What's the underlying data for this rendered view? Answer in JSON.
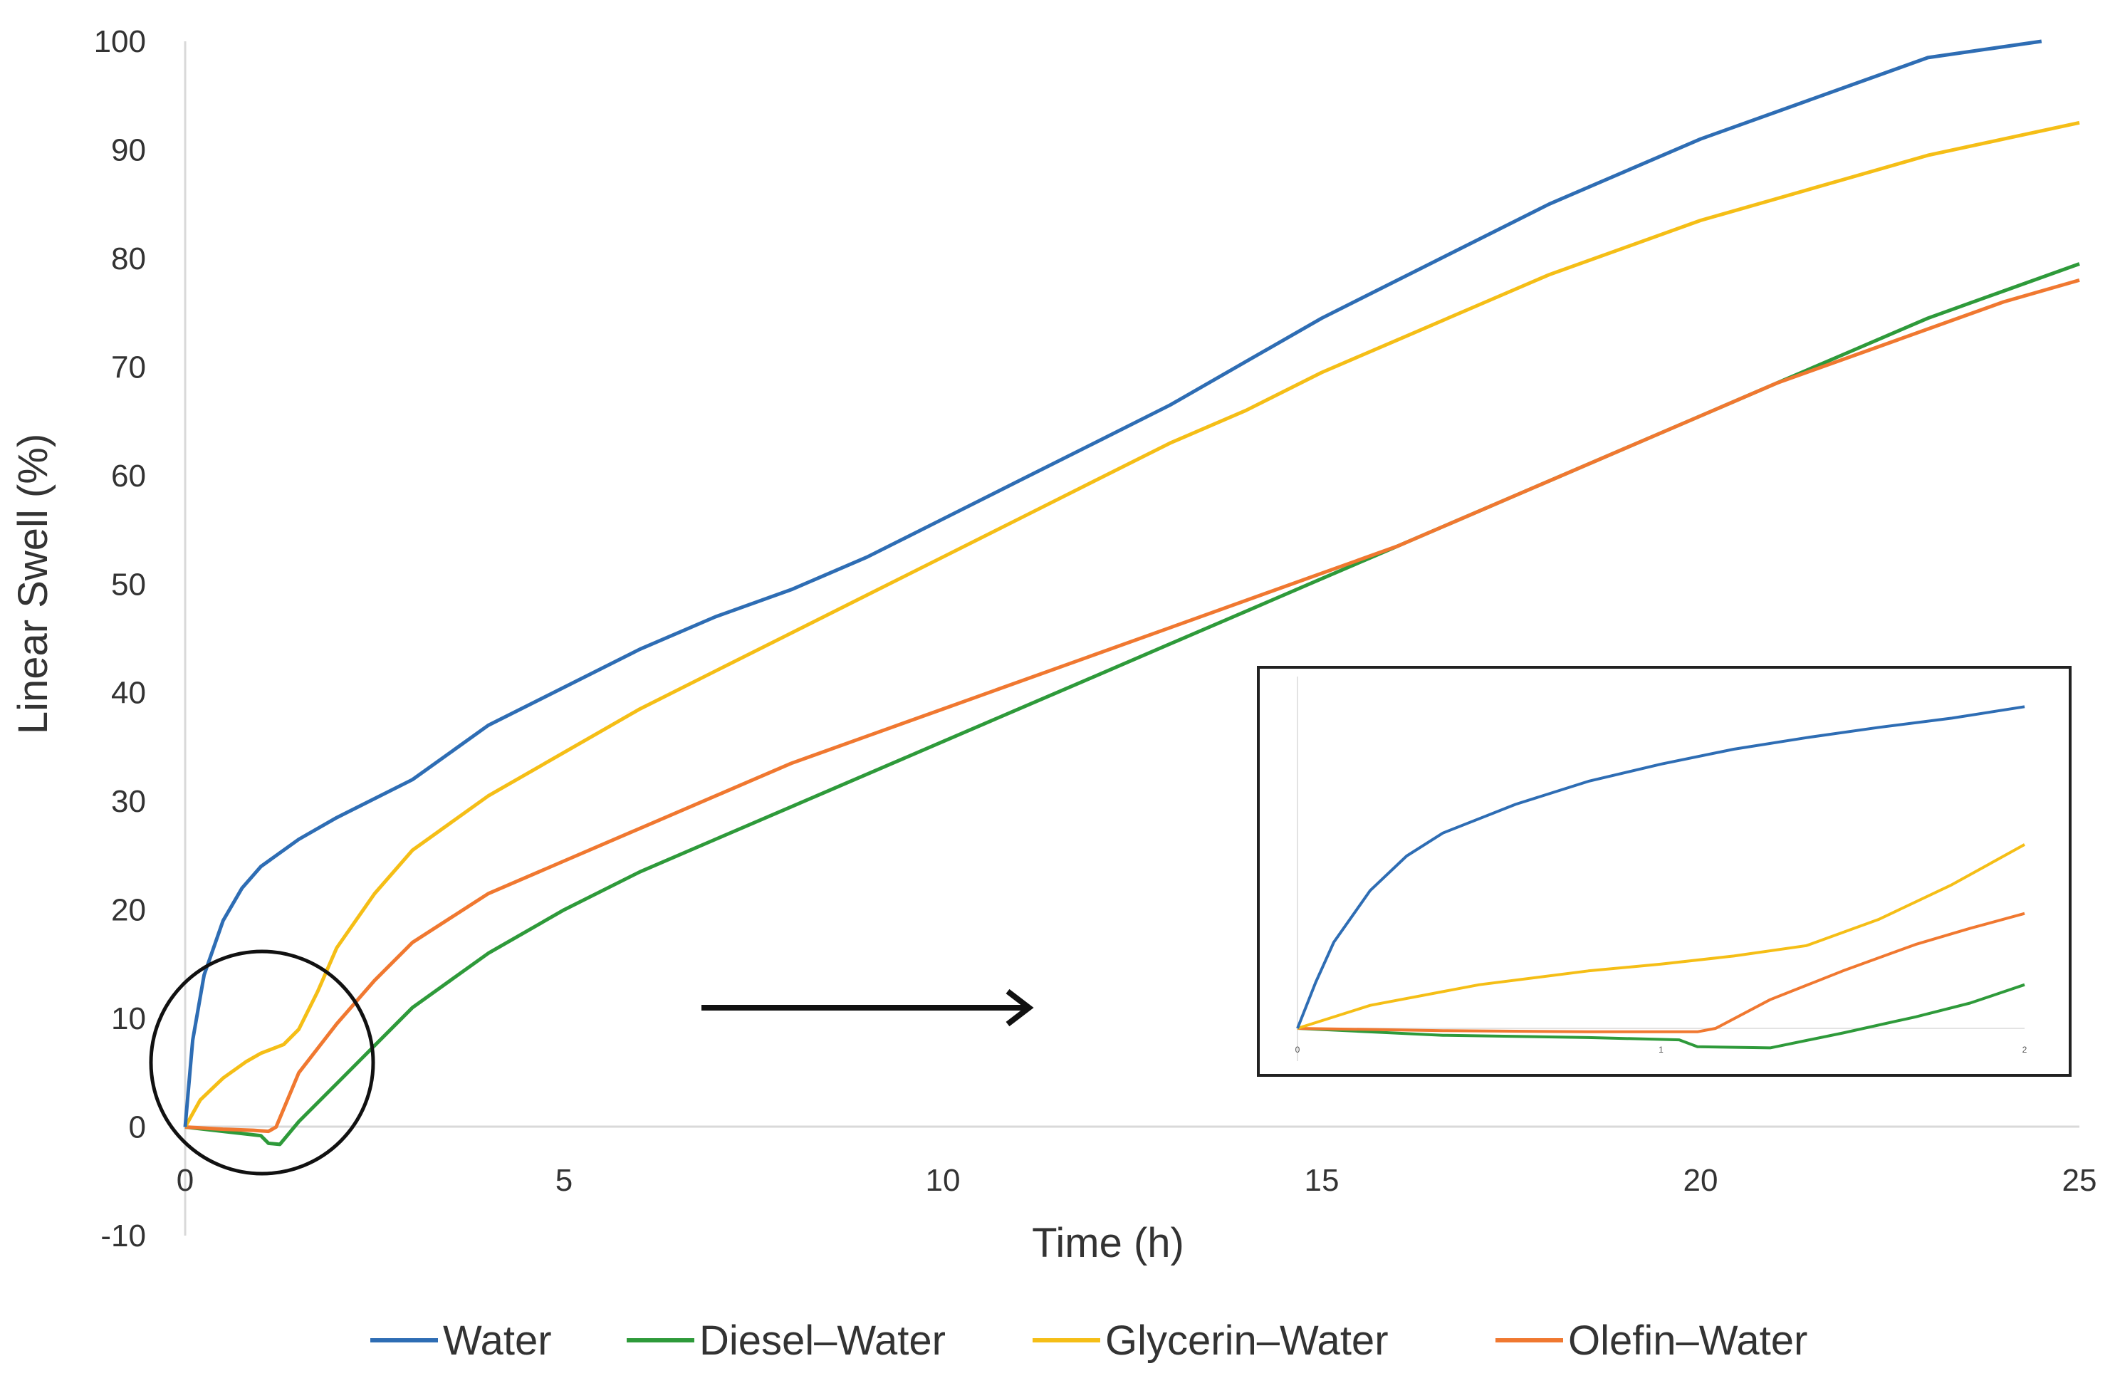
{
  "chart_data": {
    "type": "line",
    "title": "",
    "xlabel": "Time (h)",
    "ylabel": "Linear Swell (%)",
    "xlim": [
      0,
      25
    ],
    "ylim": [
      -10,
      100
    ],
    "x_ticks": [
      "0",
      "5",
      "10",
      "15",
      "20",
      "25"
    ],
    "y_ticks": [
      "-10",
      "0",
      "10",
      "20",
      "30",
      "40",
      "50",
      "60",
      "70",
      "80",
      "90",
      "100"
    ],
    "grid": false,
    "legend_position": "bottom",
    "series": [
      {
        "name": "Water",
        "color": "#2E6DB4",
        "points": [
          [
            0,
            0
          ],
          [
            0.1,
            8
          ],
          [
            0.25,
            14
          ],
          [
            0.5,
            19
          ],
          [
            0.75,
            22
          ],
          [
            1,
            24
          ],
          [
            1.5,
            26.5
          ],
          [
            2,
            28.5
          ],
          [
            3,
            32
          ],
          [
            4,
            37
          ],
          [
            5,
            40.5
          ],
          [
            6,
            44
          ],
          [
            7,
            47
          ],
          [
            8,
            49.5
          ],
          [
            9,
            52.5
          ],
          [
            10,
            56
          ],
          [
            11,
            59.5
          ],
          [
            12,
            63
          ],
          [
            13,
            66.5
          ],
          [
            14,
            70.5
          ],
          [
            15,
            74.5
          ],
          [
            16,
            78
          ],
          [
            17,
            81.5
          ],
          [
            18,
            85
          ],
          [
            19,
            88
          ],
          [
            20,
            91
          ],
          [
            21,
            93.5
          ],
          [
            22,
            96
          ],
          [
            23,
            98.5
          ],
          [
            24,
            99.5
          ],
          [
            24.5,
            100
          ]
        ]
      },
      {
        "name": "Diesel–Water",
        "color": "#2E9A3A",
        "points": [
          [
            0,
            0
          ],
          [
            0.5,
            -0.4
          ],
          [
            1,
            -0.8
          ],
          [
            1.1,
            -1.5
          ],
          [
            1.25,
            -1.6
          ],
          [
            1.5,
            0.5
          ],
          [
            2,
            4
          ],
          [
            2.5,
            7.5
          ],
          [
            3,
            11
          ],
          [
            4,
            16
          ],
          [
            5,
            20
          ],
          [
            6,
            23.5
          ],
          [
            7,
            26.5
          ],
          [
            8,
            29.5
          ],
          [
            9,
            32.5
          ],
          [
            10,
            35.5
          ],
          [
            11,
            38.5
          ],
          [
            12,
            41.5
          ],
          [
            13,
            44.5
          ],
          [
            14,
            47.5
          ],
          [
            15,
            50.5
          ],
          [
            16,
            53.5
          ],
          [
            17,
            56.5
          ],
          [
            18,
            59.5
          ],
          [
            19,
            62.5
          ],
          [
            20,
            65.5
          ],
          [
            21,
            68.5
          ],
          [
            22,
            71.5
          ],
          [
            23,
            74.5
          ],
          [
            24,
            77
          ],
          [
            25,
            79.5
          ]
        ]
      },
      {
        "name": "Glycerin–Water",
        "color": "#F5BE16",
        "points": [
          [
            0,
            0
          ],
          [
            0.2,
            2.5
          ],
          [
            0.5,
            4.5
          ],
          [
            0.8,
            6
          ],
          [
            1,
            6.8
          ],
          [
            1.3,
            7.6
          ],
          [
            1.5,
            9
          ],
          [
            1.75,
            12.5
          ],
          [
            2,
            16.5
          ],
          [
            2.5,
            21.5
          ],
          [
            3,
            25.5
          ],
          [
            4,
            30.5
          ],
          [
            5,
            34.5
          ],
          [
            6,
            38.5
          ],
          [
            7,
            42
          ],
          [
            8,
            45.5
          ],
          [
            9,
            49
          ],
          [
            10,
            52.5
          ],
          [
            11,
            56
          ],
          [
            12,
            59.5
          ],
          [
            13,
            63
          ],
          [
            14,
            66
          ],
          [
            15,
            69.5
          ],
          [
            16,
            72.5
          ],
          [
            17,
            75.5
          ],
          [
            18,
            78.5
          ],
          [
            19,
            81
          ],
          [
            20,
            83.5
          ],
          [
            21,
            85.5
          ],
          [
            22,
            87.5
          ],
          [
            23,
            89.5
          ],
          [
            24,
            91
          ],
          [
            25,
            92.5
          ]
        ]
      },
      {
        "name": "Olefin–Water",
        "color": "#F07830",
        "points": [
          [
            0,
            0
          ],
          [
            0.5,
            -0.2
          ],
          [
            0.9,
            -0.3
          ],
          [
            1.1,
            -0.4
          ],
          [
            1.2,
            0
          ],
          [
            1.5,
            5
          ],
          [
            2,
            9.5
          ],
          [
            2.5,
            13.5
          ],
          [
            3,
            17
          ],
          [
            4,
            21.5
          ],
          [
            5,
            24.5
          ],
          [
            6,
            27.5
          ],
          [
            7,
            30.5
          ],
          [
            8,
            33.5
          ],
          [
            9,
            36
          ],
          [
            10,
            38.5
          ],
          [
            11,
            41
          ],
          [
            12,
            43.5
          ],
          [
            13,
            46
          ],
          [
            14,
            48.5
          ],
          [
            15,
            51
          ],
          [
            16,
            53.5
          ],
          [
            17,
            56.5
          ],
          [
            18,
            59.5
          ],
          [
            19,
            62.5
          ],
          [
            20,
            65.5
          ],
          [
            21,
            68.5
          ],
          [
            22,
            71
          ],
          [
            23,
            73.5
          ],
          [
            24,
            76
          ],
          [
            25,
            78
          ]
        ]
      }
    ],
    "inset": {
      "description_ticks": [
        "0",
        "1",
        "2"
      ],
      "xlim": [
        0,
        2
      ],
      "ylim": [
        -3,
        30
      ],
      "series": [
        {
          "name": "Water",
          "color": "#2E6DB4",
          "points": [
            [
              0,
              0
            ],
            [
              0.05,
              4
            ],
            [
              0.1,
              7.5
            ],
            [
              0.2,
              12
            ],
            [
              0.3,
              15
            ],
            [
              0.4,
              17
            ],
            [
              0.6,
              19.5
            ],
            [
              0.8,
              21.5
            ],
            [
              1,
              23
            ],
            [
              1.2,
              24.3
            ],
            [
              1.4,
              25.3
            ],
            [
              1.6,
              26.2
            ],
            [
              1.8,
              27
            ],
            [
              2,
              28
            ]
          ]
        },
        {
          "name": "Diesel–Water",
          "color": "#2E9A3A",
          "points": [
            [
              0,
              0
            ],
            [
              0.4,
              -0.6
            ],
            [
              0.8,
              -0.8
            ],
            [
              1.05,
              -1
            ],
            [
              1.1,
              -1.6
            ],
            [
              1.3,
              -1.7
            ],
            [
              1.5,
              -0.4
            ],
            [
              1.7,
              1
            ],
            [
              1.85,
              2.2
            ],
            [
              2,
              3.8
            ]
          ]
        },
        {
          "name": "Glycerin–Water",
          "color": "#F5BE16",
          "points": [
            [
              0,
              0
            ],
            [
              0.2,
              2
            ],
            [
              0.5,
              3.8
            ],
            [
              0.8,
              5
            ],
            [
              1,
              5.6
            ],
            [
              1.2,
              6.3
            ],
            [
              1.4,
              7.2
            ],
            [
              1.6,
              9.5
            ],
            [
              1.8,
              12.5
            ],
            [
              2,
              16
            ]
          ]
        },
        {
          "name": "Olefin–Water",
          "color": "#F07830",
          "points": [
            [
              0,
              0
            ],
            [
              0.4,
              -0.2
            ],
            [
              0.8,
              -0.3
            ],
            [
              1.1,
              -0.3
            ],
            [
              1.15,
              0
            ],
            [
              1.3,
              2.5
            ],
            [
              1.5,
              5
            ],
            [
              1.7,
              7.3
            ],
            [
              1.85,
              8.7
            ],
            [
              2,
              10
            ]
          ]
        }
      ]
    }
  }
}
